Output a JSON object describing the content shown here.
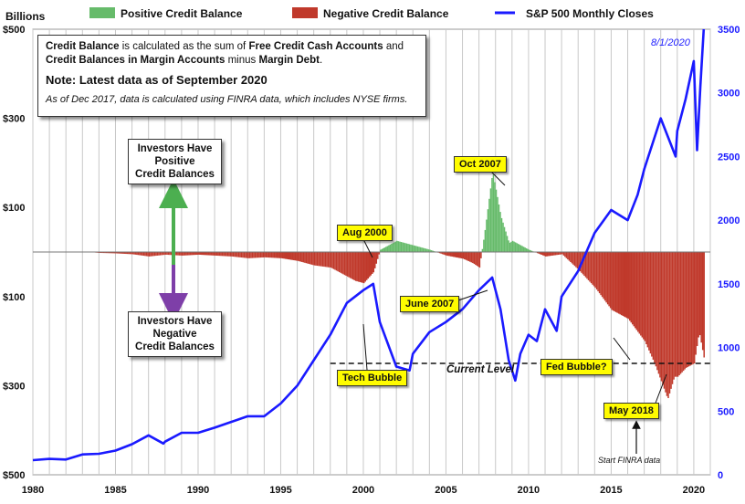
{
  "left_axis_title": "Billions",
  "legend": [
    {
      "label": "Positive Credit Balance",
      "color": "#66bb6a",
      "kind": "box"
    },
    {
      "label": "Negative Credit Balance",
      "color": "#c0392b",
      "kind": "box"
    },
    {
      "label": "S&P 500 Monthly Closes",
      "color": "#1a1aff",
      "kind": "line"
    }
  ],
  "note": {
    "line1_html": "<b>Credit Balance</b> is calculated as the sum of <b>Free Credit Cash Accounts</b> and <b>Credit Balances in Margin Accounts</b> minus <b>Margin Debt</b>.",
    "line2": "Note: Latest data as of September 2020",
    "line3": "As of Dec 2017, data is calculated using FINRA data, which includes NYSE firms."
  },
  "annotations": {
    "investors_positive": "Investors Have\nPositive\nCredit Balances",
    "investors_negative": "Investors Have\nNegative\nCredit Balances",
    "aug_2000": "Aug 2000",
    "oct_2007": "Oct 2007",
    "june_2007": "June 2007",
    "tech_bubble": "Tech Bubble",
    "fed_bubble": "Fed Bubble?",
    "may_2018": "May 2018",
    "current_level": "Current Level",
    "latest_date": "8/1/2020",
    "start_finra": "Start FINRA data"
  },
  "chart_data": {
    "type": "bar",
    "x_range": [
      1980,
      2021
    ],
    "x_ticks": [
      "1980",
      "1985",
      "1990",
      "1995",
      "2000",
      "2005",
      "2010",
      "2015",
      "2020"
    ],
    "left_axis": {
      "title": "Billions",
      "range": [
        -500,
        500
      ],
      "ticks": [
        500,
        300,
        100,
        -100,
        -300,
        -500
      ],
      "tick_labels": [
        "$500",
        "$300",
        "$100",
        "$100",
        "$300",
        "$500"
      ]
    },
    "right_axis": {
      "range": [
        0,
        3500
      ],
      "ticks": [
        0,
        500,
        1000,
        1500,
        2000,
        2500,
        3000,
        3500
      ],
      "tick_labels": [
        "0",
        "500",
        "1000",
        "1500",
        "2000",
        "2500",
        "3000",
        "3500"
      ]
    },
    "series": [
      {
        "name": "Credit Balance",
        "axis": "left",
        "positive_color": "#66bb6a",
        "negative_color": "#c0392b",
        "points": [
          [
            1980,
            -1
          ],
          [
            1981,
            -1
          ],
          [
            1982,
            -1
          ],
          [
            1983,
            1
          ],
          [
            1984,
            -2
          ],
          [
            1985,
            -3
          ],
          [
            1986,
            -5
          ],
          [
            1987,
            -10
          ],
          [
            1988,
            -6
          ],
          [
            1989,
            -8
          ],
          [
            1990,
            -6
          ],
          [
            1991,
            -8
          ],
          [
            1992,
            -10
          ],
          [
            1993,
            -14
          ],
          [
            1994,
            -12
          ],
          [
            1995,
            -14
          ],
          [
            1996,
            -20
          ],
          [
            1997,
            -30
          ],
          [
            1998,
            -35
          ],
          [
            1999,
            -55
          ],
          [
            1999.5,
            -65
          ],
          [
            2000,
            -70
          ],
          [
            2000.6,
            -45
          ],
          [
            2001,
            5
          ],
          [
            2002,
            25
          ],
          [
            2003,
            15
          ],
          [
            2004,
            5
          ],
          [
            2005,
            -8
          ],
          [
            2006,
            -15
          ],
          [
            2006.6,
            -25
          ],
          [
            2007,
            -35
          ],
          [
            2007.3,
            40
          ],
          [
            2007.8,
            180
          ],
          [
            2008.3,
            80
          ],
          [
            2008.8,
            20
          ],
          [
            2009,
            25
          ],
          [
            2009.5,
            15
          ],
          [
            2010,
            5
          ],
          [
            2011,
            -10
          ],
          [
            2012,
            -5
          ],
          [
            2013,
            -40
          ],
          [
            2014,
            -80
          ],
          [
            2015,
            -130
          ],
          [
            2016,
            -150
          ],
          [
            2017,
            -200
          ],
          [
            2017.6,
            -250
          ],
          [
            2018,
            -290
          ],
          [
            2018.4,
            -330
          ],
          [
            2018.8,
            -280
          ],
          [
            2019,
            -280
          ],
          [
            2019.5,
            -260
          ],
          [
            2020,
            -250
          ],
          [
            2020.3,
            -180
          ],
          [
            2020.6,
            -240
          ]
        ]
      },
      {
        "name": "S&P 500 Monthly Closes",
        "axis": "right",
        "color": "#1a1aff",
        "points": [
          [
            1980,
            115
          ],
          [
            1981,
            125
          ],
          [
            1982,
            120
          ],
          [
            1983,
            160
          ],
          [
            1984,
            165
          ],
          [
            1985,
            190
          ],
          [
            1986,
            240
          ],
          [
            1987,
            310
          ],
          [
            1987.9,
            245
          ],
          [
            1988,
            260
          ],
          [
            1989,
            330
          ],
          [
            1990,
            330
          ],
          [
            1991,
            370
          ],
          [
            1992,
            415
          ],
          [
            1993,
            460
          ],
          [
            1994,
            460
          ],
          [
            1995,
            560
          ],
          [
            1996,
            700
          ],
          [
            1997,
            900
          ],
          [
            1998,
            1100
          ],
          [
            1999,
            1350
          ],
          [
            2000,
            1450
          ],
          [
            2000.6,
            1500
          ],
          [
            2001,
            1200
          ],
          [
            2002,
            850
          ],
          [
            2002.8,
            820
          ],
          [
            2003,
            950
          ],
          [
            2004,
            1120
          ],
          [
            2005,
            1200
          ],
          [
            2006,
            1300
          ],
          [
            2007,
            1450
          ],
          [
            2007.8,
            1550
          ],
          [
            2008.3,
            1300
          ],
          [
            2008.8,
            900
          ],
          [
            2009.2,
            740
          ],
          [
            2009.5,
            950
          ],
          [
            2010,
            1100
          ],
          [
            2010.5,
            1050
          ],
          [
            2011,
            1300
          ],
          [
            2011.7,
            1130
          ],
          [
            2012,
            1400
          ],
          [
            2013,
            1600
          ],
          [
            2014,
            1900
          ],
          [
            2015,
            2080
          ],
          [
            2016,
            2000
          ],
          [
            2016.6,
            2200
          ],
          [
            2017,
            2400
          ],
          [
            2018,
            2800
          ],
          [
            2018.9,
            2500
          ],
          [
            2019,
            2700
          ],
          [
            2019.5,
            2950
          ],
          [
            2020,
            3250
          ],
          [
            2020.2,
            2550
          ],
          [
            2020.4,
            3050
          ],
          [
            2020.6,
            3500
          ]
        ]
      }
    ],
    "reference_line": {
      "label": "Current Level",
      "value": -250,
      "axis": "left",
      "style": "dashed"
    }
  }
}
